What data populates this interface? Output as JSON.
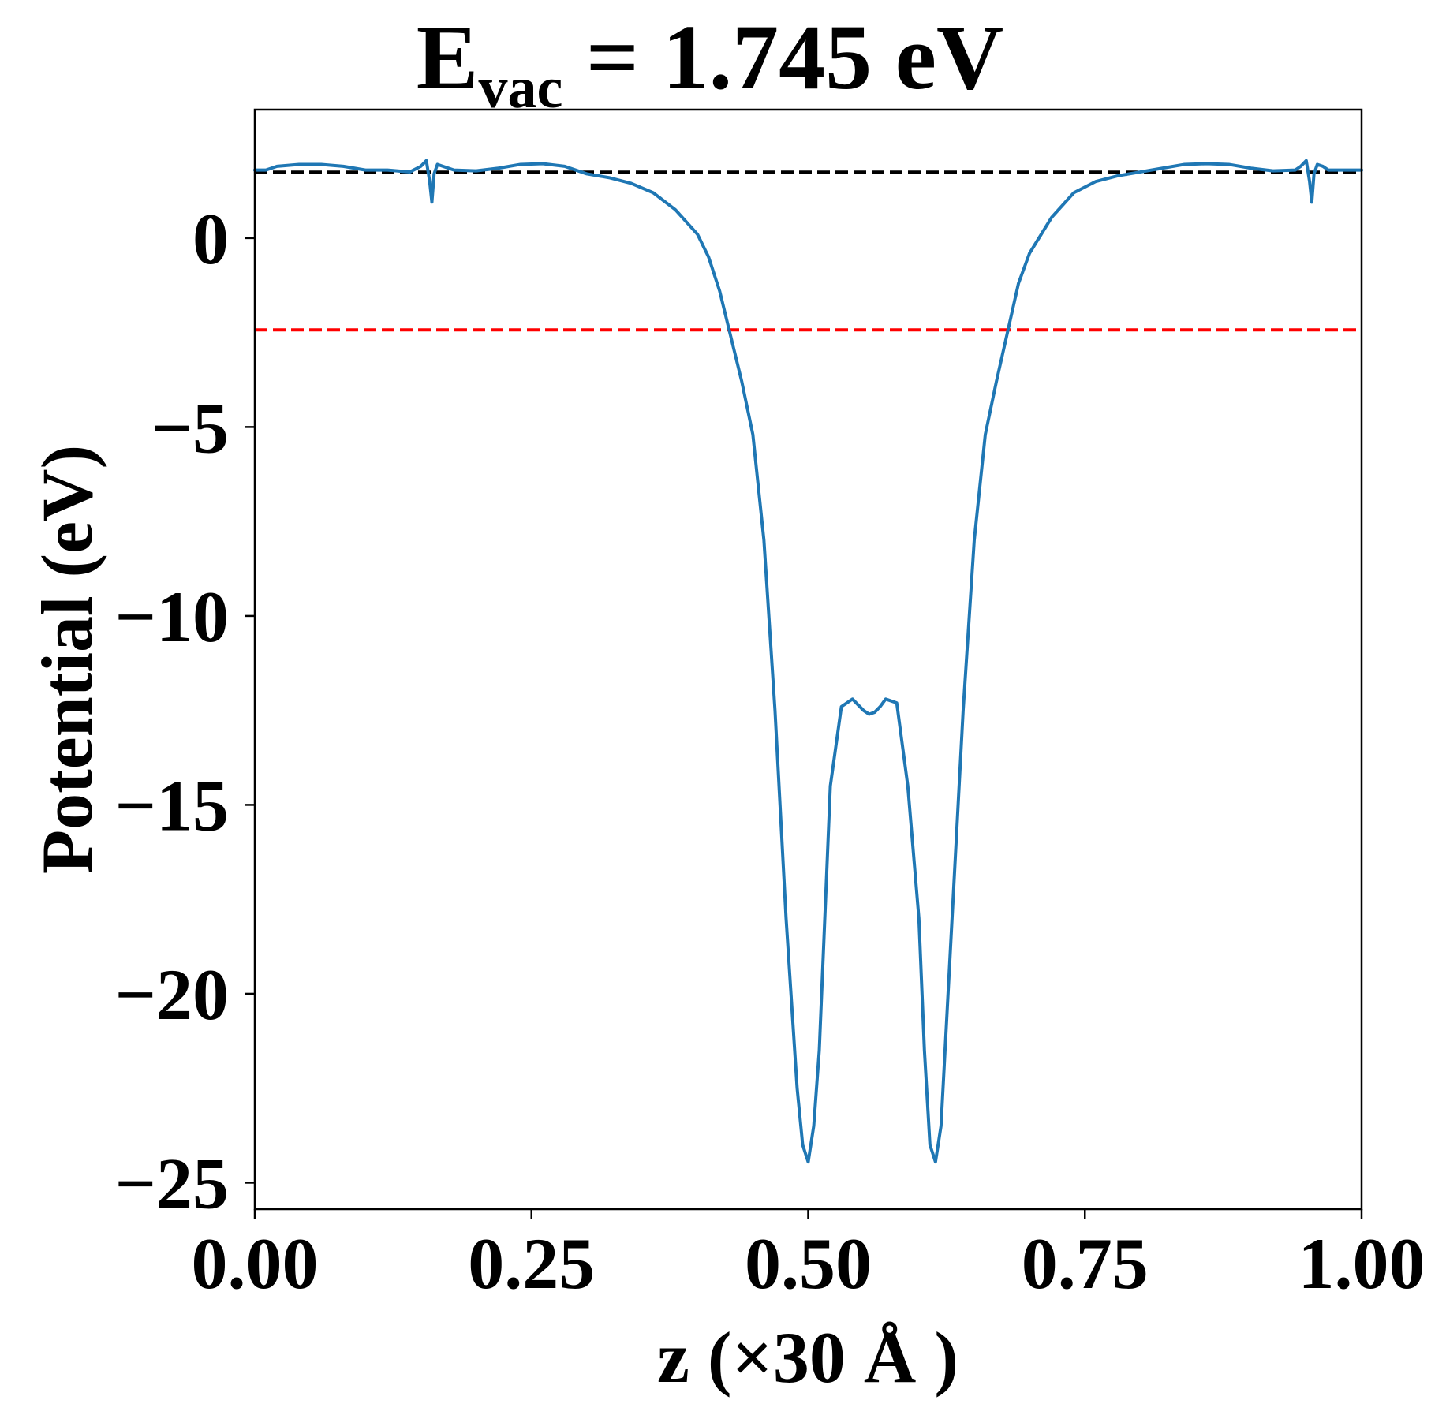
{
  "chart_data": {
    "type": "line",
    "title": {
      "main": "E",
      "subscript": "vac",
      "rest": " = 1.745 eV"
    },
    "xlabel": "z (×30 Å )",
    "ylabel": "Potential (eV)",
    "xlim": [
      0.0,
      1.0
    ],
    "ylim": [
      -25.7,
      3.4
    ],
    "xticks": [
      0.0,
      0.25,
      0.5,
      0.75,
      1.0
    ],
    "xtick_labels": [
      "0.00",
      "0.25",
      "0.50",
      "0.75",
      "1.00"
    ],
    "yticks": [
      0,
      -5,
      -10,
      -15,
      -20,
      -25
    ],
    "ytick_labels": [
      "0",
      "−5",
      "−10",
      "−15",
      "−20",
      "−25"
    ],
    "grid": false,
    "reference_lines": [
      {
        "name": "vacuum level",
        "y": 1.745,
        "color": "#000000",
        "style": "dashed"
      },
      {
        "name": "fermi level",
        "y": -2.43,
        "color": "#ff0000",
        "style": "dashed"
      }
    ],
    "series": [
      {
        "color": "#1f77b4",
        "x": [
          0.0,
          0.01,
          0.02,
          0.04,
          0.06,
          0.08,
          0.1,
          0.12,
          0.14,
          0.15,
          0.155,
          0.158,
          0.16,
          0.162,
          0.165,
          0.17,
          0.18,
          0.2,
          0.22,
          0.24,
          0.26,
          0.28,
          0.3,
          0.32,
          0.34,
          0.36,
          0.38,
          0.4,
          0.41,
          0.42,
          0.43,
          0.44,
          0.45,
          0.46,
          0.47,
          0.48,
          0.49,
          0.495,
          0.5,
          0.505,
          0.51,
          0.515,
          0.52,
          0.53,
          0.54,
          0.55,
          0.555,
          0.56,
          0.565,
          0.57,
          0.58,
          0.59,
          0.6,
          0.605,
          0.61,
          0.615,
          0.62,
          0.63,
          0.64,
          0.65,
          0.66,
          0.67,
          0.68,
          0.69,
          0.7,
          0.72,
          0.74,
          0.76,
          0.78,
          0.8,
          0.82,
          0.84,
          0.86,
          0.88,
          0.9,
          0.92,
          0.94,
          0.945,
          0.95,
          0.953,
          0.955,
          0.957,
          0.96,
          0.965,
          0.97,
          0.98,
          0.99,
          1.0
        ],
        "y": [
          1.8,
          1.8,
          1.9,
          1.95,
          1.95,
          1.9,
          1.8,
          1.8,
          1.75,
          1.9,
          2.05,
          1.5,
          0.95,
          1.7,
          1.95,
          1.9,
          1.8,
          1.78,
          1.85,
          1.95,
          1.97,
          1.9,
          1.7,
          1.6,
          1.45,
          1.2,
          0.75,
          0.1,
          -0.5,
          -1.4,
          -2.6,
          -3.8,
          -5.2,
          -8.0,
          -12.5,
          -18.0,
          -22.5,
          -24.0,
          -24.45,
          -23.5,
          -21.5,
          -18.0,
          -14.5,
          -12.4,
          -12.2,
          -12.5,
          -12.6,
          -12.55,
          -12.4,
          -12.2,
          -12.3,
          -14.5,
          -18.0,
          -21.5,
          -24.0,
          -24.45,
          -23.5,
          -18.0,
          -12.5,
          -8.0,
          -5.2,
          -3.8,
          -2.5,
          -1.2,
          -0.4,
          0.55,
          1.2,
          1.5,
          1.65,
          1.75,
          1.85,
          1.95,
          1.97,
          1.95,
          1.85,
          1.78,
          1.8,
          1.9,
          2.05,
          1.5,
          0.95,
          1.7,
          1.95,
          1.9,
          1.8,
          1.8,
          1.8,
          1.8
        ]
      }
    ]
  }
}
